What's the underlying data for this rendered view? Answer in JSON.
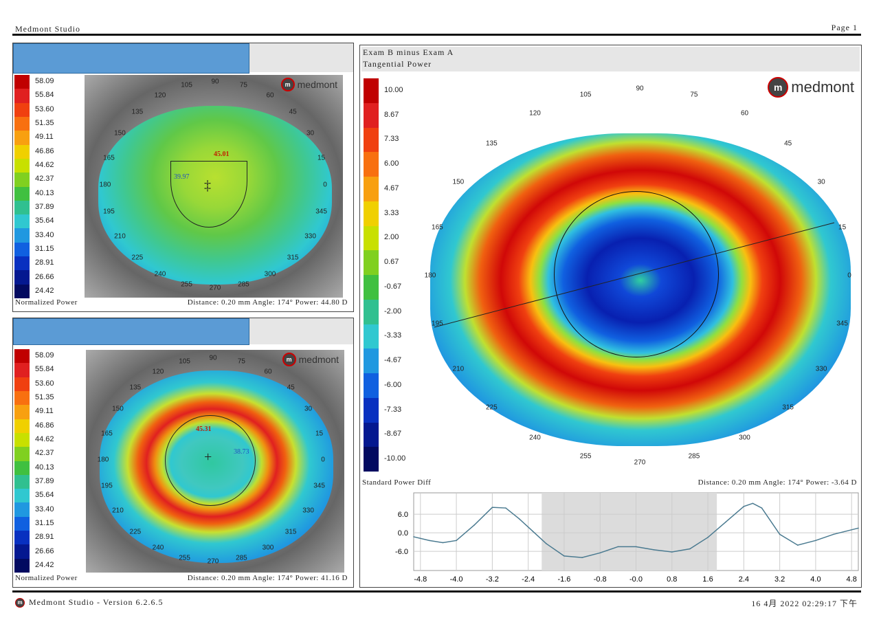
{
  "header": {
    "app": "Medmont Studio",
    "page": "Page 1"
  },
  "footer": {
    "version": "Medmont Studio - Version 6.2.6.5",
    "datetime": "16 4月 2022 02:29:17 下午"
  },
  "colors": {
    "accent": "#5b9bd5"
  },
  "legend_left": [
    "58.09",
    "55.84",
    "53.60",
    "51.35",
    "49.11",
    "46.86",
    "44.62",
    "42.37",
    "40.13",
    "37.89",
    "35.64",
    "33.40",
    "31.15",
    "28.91",
    "26.66",
    "24.42"
  ],
  "legend_left_colors": [
    "#c00000",
    "#e02020",
    "#f04010",
    "#f87010",
    "#f8a010",
    "#f0d000",
    "#c8e000",
    "#80d020",
    "#40c040",
    "#30c090",
    "#30c8d0",
    "#2098e0",
    "#1060e0",
    "#0830c0",
    "#041890",
    "#020a60"
  ],
  "legend_right": [
    "10.00",
    "8.67",
    "7.33",
    "6.00",
    "4.67",
    "3.33",
    "2.00",
    "0.67",
    "-0.67",
    "-2.00",
    "-3.33",
    "-4.67",
    "-6.00",
    "-7.33",
    "-8.67",
    "-10.00"
  ],
  "angles": [
    "90",
    "105",
    "120",
    "135",
    "150",
    "165",
    "180",
    "195",
    "210",
    "225",
    "240",
    "255",
    "270",
    "285",
    "300",
    "315",
    "330",
    "345",
    "0",
    "15",
    "30",
    "45",
    "60",
    "75"
  ],
  "panel1": {
    "label": "Normalized Power",
    "readout": "Distance: 0.20 mm  Angle: 174°  Power: 44.80 D",
    "mark1": "45.01",
    "mark2": "39.97"
  },
  "panel2": {
    "label": "Normalized Power",
    "readout": "Distance: 0.20 mm  Angle: 174°  Power: 41.16 D",
    "mark1": "45.31",
    "mark2": "38.73"
  },
  "right": {
    "title1": "Exam B minus Exam A",
    "title2": "Tangential Power",
    "label": "Standard Power Diff",
    "readout": "Distance: 0.20 mm  Angle: 174°  Power: -3.64 D"
  },
  "logo": "medmont",
  "chart_data": {
    "type": "line",
    "title": "",
    "xlabel": "",
    "ylabel": "",
    "xticks": [
      "-4.8",
      "-4.0",
      "-3.2",
      "-2.4",
      "-1.6",
      "-0.8",
      "-0.0",
      "0.8",
      "1.6",
      "2.4",
      "3.2",
      "4.0",
      "4.8"
    ],
    "yticks": [
      "6.0",
      "0.0",
      "-6.0"
    ],
    "xlim": [
      -4.95,
      4.95
    ],
    "ylim": [
      -12.2,
      12.9
    ],
    "shaded_range": [
      -2.1,
      1.8
    ],
    "x": [
      -4.95,
      -4.6,
      -4.3,
      -4.0,
      -3.6,
      -3.2,
      -2.9,
      -2.6,
      -2.3,
      -2.0,
      -1.6,
      -1.2,
      -0.8,
      -0.4,
      0.0,
      0.4,
      0.8,
      1.2,
      1.6,
      2.0,
      2.4,
      2.6,
      2.8,
      3.2,
      3.6,
      4.0,
      4.4,
      4.95
    ],
    "y": [
      -1.3,
      -2.5,
      -3.2,
      -2.5,
      2.5,
      8.2,
      8.0,
      4.5,
      0.5,
      -3.5,
      -7.5,
      -8.0,
      -6.5,
      -4.5,
      -4.5,
      -5.5,
      -6.2,
      -5.2,
      -1.5,
      3.5,
      8.5,
      9.5,
      8.0,
      -0.5,
      -4.0,
      -2.5,
      -0.5,
      1.5
    ]
  }
}
